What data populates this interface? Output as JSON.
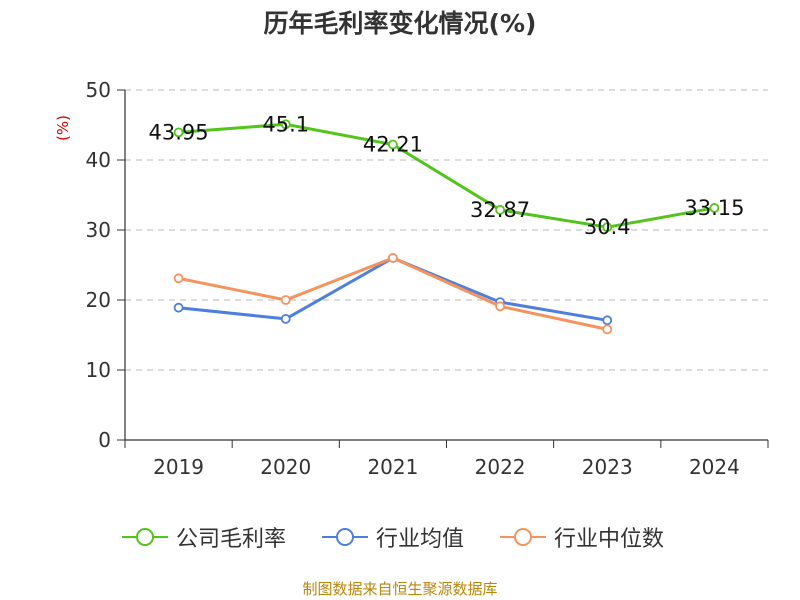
{
  "chart_data": {
    "type": "line",
    "title": "历年毛利率变化情况(%)",
    "ylabel": "(%)",
    "xlabel": "",
    "categories": [
      "2019",
      "2020",
      "2021",
      "2022",
      "2023",
      "2024"
    ],
    "ylim": [
      0,
      50
    ],
    "yticks": [
      0,
      10,
      20,
      30,
      40,
      50
    ],
    "grid": true,
    "legend_position": "bottom",
    "series": [
      {
        "name": "公司毛利率",
        "color": "#52c41a",
        "values": [
          43.95,
          45.1,
          42.21,
          32.87,
          30.4,
          33.15
        ],
        "data_labels": [
          "43.95",
          "45.1",
          "42.21",
          "32.87",
          "30.4",
          "33.15"
        ]
      },
      {
        "name": "行业均值",
        "color": "#4e7fdd",
        "values": [
          18.9,
          17.3,
          26.0,
          19.7,
          17.1,
          null
        ]
      },
      {
        "name": "行业中位数",
        "color": "#f5935f",
        "values": [
          23.1,
          20.0,
          26.0,
          19.1,
          15.8,
          null
        ]
      }
    ]
  },
  "source_text": "制图数据来自恒生聚源数据库"
}
